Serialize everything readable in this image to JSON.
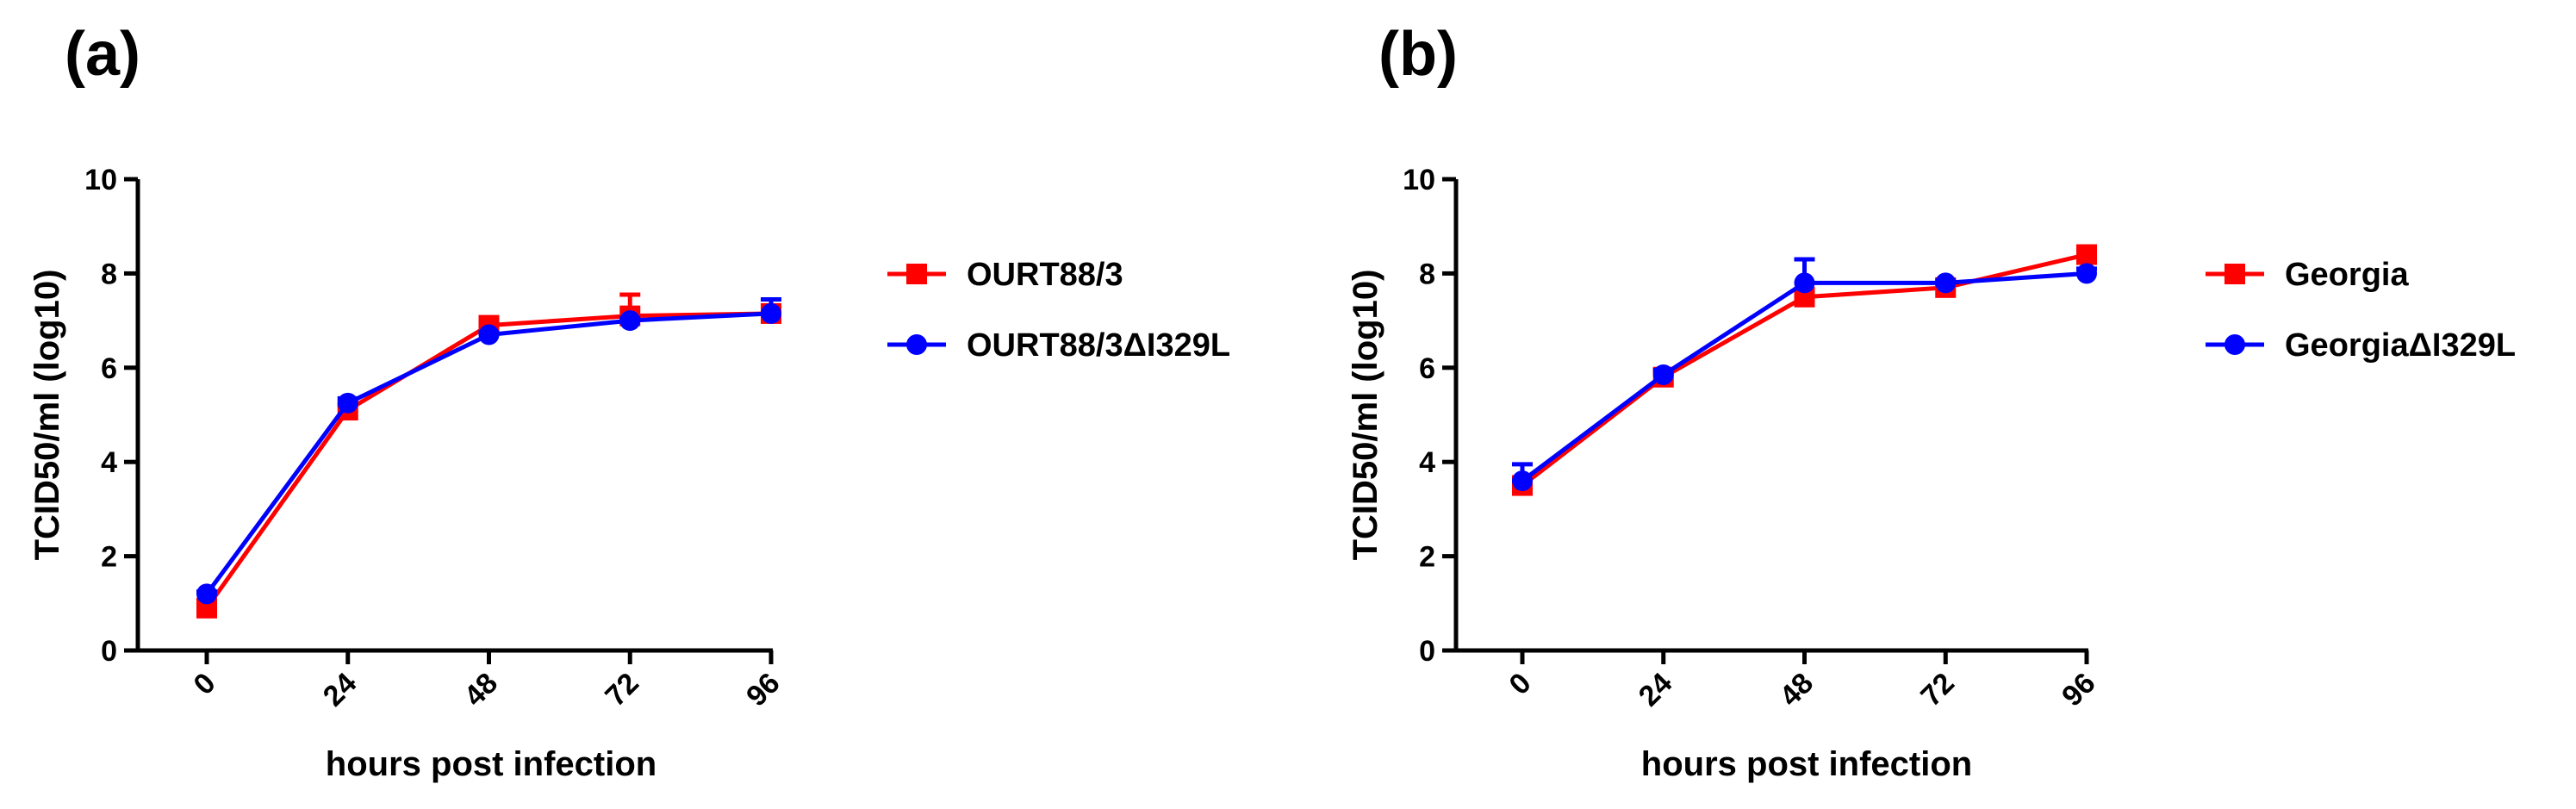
{
  "panels": {
    "a_label": "(a)",
    "b_label": "(b)"
  },
  "chart_data": [
    {
      "type": "line",
      "panel": "(a)",
      "xlabel": "hours post infection",
      "ylabel": "TCID50/ml (log10)",
      "x": [
        0,
        24,
        48,
        72,
        96
      ],
      "x_tick_labels": [
        "0",
        "24",
        "48",
        "72",
        "96"
      ],
      "ylim": [
        0,
        10
      ],
      "y_ticks": [
        0,
        2,
        4,
        6,
        8,
        10
      ],
      "legend_position": "right",
      "series": [
        {
          "name": "OURT88/3",
          "color": "#ff0000",
          "marker": "square",
          "values": [
            0.9,
            5.1,
            6.9,
            7.1,
            7.15
          ],
          "error": [
            0.1,
            0.1,
            0.1,
            0.45,
            0.1
          ]
        },
        {
          "name": "OURT88/3ΔI329L",
          "color": "#0000ff",
          "marker": "circle",
          "values": [
            1.2,
            5.25,
            6.7,
            7.0,
            7.15
          ],
          "error": [
            0.05,
            0.1,
            0.05,
            0.05,
            0.3
          ]
        }
      ]
    },
    {
      "type": "line",
      "panel": "(b)",
      "xlabel": "hours post infection",
      "ylabel": "TCID50/ml (log10)",
      "x": [
        0,
        24,
        48,
        72,
        96
      ],
      "x_tick_labels": [
        "0",
        "24",
        "48",
        "72",
        "96"
      ],
      "ylim": [
        0,
        10
      ],
      "y_ticks": [
        0,
        2,
        4,
        6,
        8,
        10
      ],
      "legend_position": "right",
      "series": [
        {
          "name": "Georgia",
          "color": "#ff0000",
          "marker": "square",
          "values": [
            3.5,
            5.8,
            7.5,
            7.7,
            8.4
          ],
          "error": [
            0.1,
            0.1,
            0.1,
            0.05,
            0.1
          ]
        },
        {
          "name": "GeorgiaΔI329L",
          "color": "#0000ff",
          "marker": "circle",
          "values": [
            3.6,
            5.85,
            7.8,
            7.8,
            8.0
          ],
          "error": [
            0.35,
            0.1,
            0.5,
            0.05,
            0.1
          ]
        }
      ]
    }
  ]
}
